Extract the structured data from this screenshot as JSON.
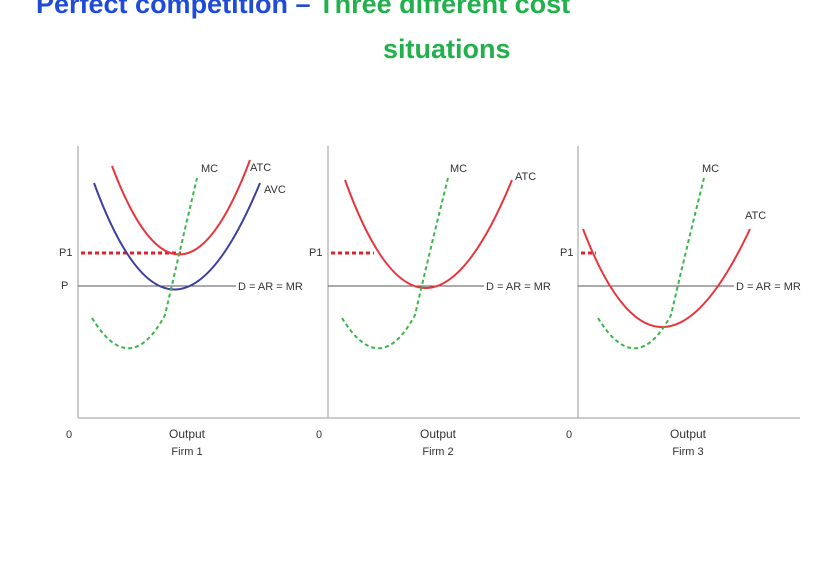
{
  "title": {
    "line1_part1": "Perfect competition – ",
    "line1_part2": "Three different cost",
    "line2": "situations"
  },
  "colors": {
    "title_blue": "#1f4bd8",
    "title_green": "#21b04b",
    "atc": "#e8343c",
    "avc": "#3b3f9e",
    "mc": "#3cb54a",
    "price_line": "#555555",
    "p1_line": "#e0202a"
  },
  "panels": [
    {
      "firm": "Firm 1",
      "x_label": "Output",
      "origin": "0",
      "p1_label": "P1",
      "p_label": "P",
      "demand_label": "D = AR = MR",
      "curve_labels": {
        "mc": "MC",
        "atc": "ATC",
        "avc": "AVC"
      }
    },
    {
      "firm": "Firm 2",
      "x_label": "Output",
      "origin": "0",
      "p1_label": "P1",
      "demand_label": "D = AR = MR",
      "curve_labels": {
        "mc": "MC",
        "atc": "ATC"
      }
    },
    {
      "firm": "Firm 3",
      "x_label": "Output",
      "origin": "0",
      "p1_label": "P1",
      "demand_label": "D = AR = MR",
      "curve_labels": {
        "mc": "MC",
        "atc": "ATC"
      }
    }
  ]
}
